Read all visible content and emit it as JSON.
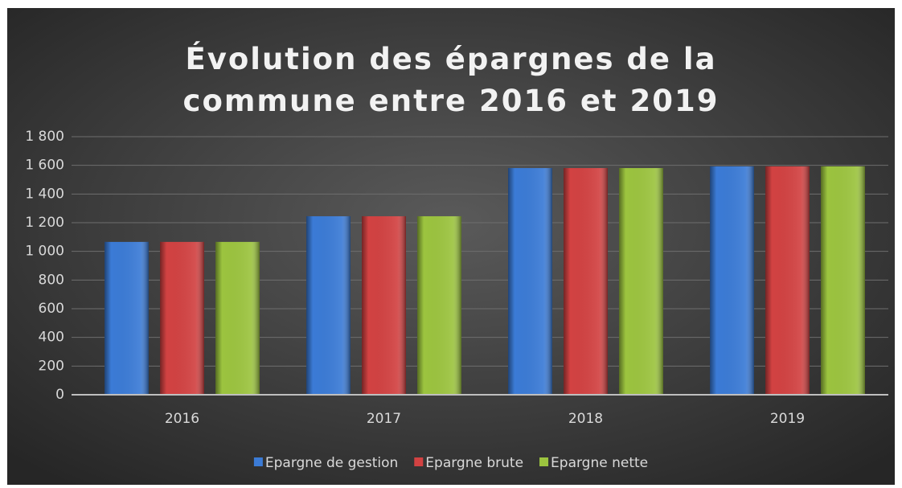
{
  "chart_data": {
    "type": "bar",
    "title": "Évolution des épargnes de la commune entre 2016 et 2019",
    "categories": [
      "2016",
      "2017",
      "2018",
      "2019"
    ],
    "series": [
      {
        "name": "Epargne de gestion",
        "color": "#3b7bd6",
        "values": [
          1066,
          1245,
          1581,
          1593
        ]
      },
      {
        "name": "Epargne brute",
        "color": "#d24242",
        "values": [
          1066,
          1245,
          1581,
          1593
        ]
      },
      {
        "name": "Epargne nette",
        "color": "#9cc43f",
        "values": [
          1066,
          1245,
          1581,
          1593
        ]
      }
    ],
    "ylim": [
      0,
      1800
    ],
    "yticks": [
      0,
      200,
      400,
      600,
      800,
      {
        "value": 1000,
        "label": "1 000"
      },
      {
        "value": 1200,
        "label": "1 200"
      },
      {
        "value": 1400,
        "label": "1 400"
      },
      {
        "value": 1600,
        "label": "1 600"
      },
      {
        "value": 1800,
        "label": "1 800"
      }
    ],
    "grid": true,
    "legend": "bottom"
  }
}
